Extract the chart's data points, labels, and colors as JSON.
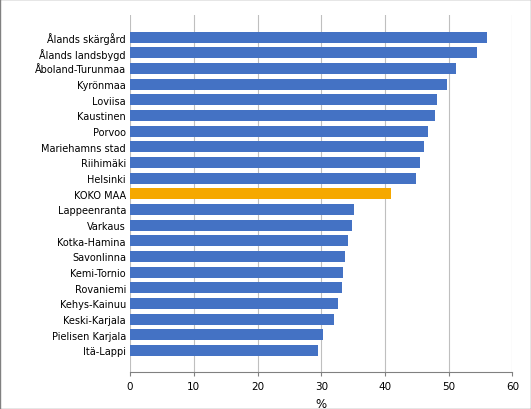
{
  "categories": [
    "Itä-Lappi",
    "Pielisen Karjala",
    "Keski-Karjala",
    "Kehys-Kainuu",
    "Rovaniemi",
    "Kemi-Tornio",
    "Savonlinna",
    "Kotka-Hamina",
    "Varkaus",
    "Lappeenranta",
    "KOKO MAA",
    "Helsinki",
    "Riihimäki",
    "Mariehamns stad",
    "Porvoo",
    "Kaustinen",
    "Loviisa",
    "Kyrönmaa",
    "Åboland-Turunmaa",
    "Ålands landsbygd",
    "Ålands skärgård"
  ],
  "values": [
    29.5,
    30.2,
    32.0,
    32.7,
    33.2,
    33.4,
    33.7,
    34.2,
    34.8,
    35.2,
    41.0,
    44.8,
    45.5,
    46.2,
    46.8,
    47.8,
    48.2,
    49.8,
    51.2,
    54.5,
    56.0
  ],
  "bar_colors": [
    "#4472C4",
    "#4472C4",
    "#4472C4",
    "#4472C4",
    "#4472C4",
    "#4472C4",
    "#4472C4",
    "#4472C4",
    "#4472C4",
    "#4472C4",
    "#F5A800",
    "#4472C4",
    "#4472C4",
    "#4472C4",
    "#4472C4",
    "#4472C4",
    "#4472C4",
    "#4472C4",
    "#4472C4",
    "#4472C4",
    "#4472C4"
  ],
  "xlabel": "%",
  "xlim": [
    0,
    60
  ],
  "xticks": [
    0,
    10,
    20,
    30,
    40,
    50,
    60
  ],
  "grid_color": "#BFBFBF",
  "background_color": "#FFFFFF",
  "figure_bg": "#FFFFFF",
  "label_fontsize": 7.0,
  "tick_fontsize": 7.5,
  "xlabel_fontsize": 8.5
}
